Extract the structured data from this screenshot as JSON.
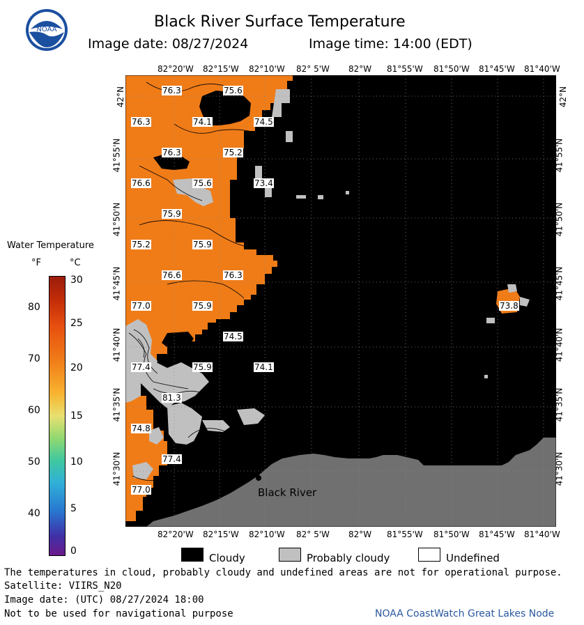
{
  "header": {
    "title": "Black River Surface Temperature",
    "image_date": "Image date: 08/27/2024",
    "image_time": "Image time: 14:00 (EDT)",
    "logo_text": "NOAA"
  },
  "map": {
    "lon_labels_top": [
      "82°20'W",
      "82°15'W",
      "82°10'W",
      "82° 5'W",
      "82°W",
      "81°55'W",
      "81°50'W",
      "81°45'W",
      "81°40'W"
    ],
    "lon_labels_bottom": [
      "82°20'W",
      "82°15'W",
      "82°10'W",
      "82° 5'W",
      "82°W",
      "81°55'W",
      "81°50'W",
      "81°45'W",
      "81°40'W"
    ],
    "lat_labels": [
      "42°N",
      "41°55'N",
      "41°50'N",
      "41°45'N",
      "41°40'N",
      "41°35'N",
      "41°30'N"
    ],
    "place_label": "Black River",
    "temps": [
      {
        "t": "76.3"
      },
      {
        "t": "75.6"
      },
      {
        "t": "76.3"
      },
      {
        "t": "74.1"
      },
      {
        "t": "74.5"
      },
      {
        "t": "76.3"
      },
      {
        "t": "75.2"
      },
      {
        "t": "76.6"
      },
      {
        "t": "75.6"
      },
      {
        "t": "73.4"
      },
      {
        "t": "75.9"
      },
      {
        "t": "75.2"
      },
      {
        "t": "75.9"
      },
      {
        "t": "76.6"
      },
      {
        "t": "76.3"
      },
      {
        "t": "77.0"
      },
      {
        "t": "75.9"
      },
      {
        "t": "73.8"
      },
      {
        "t": "74.5"
      },
      {
        "t": "77.4"
      },
      {
        "t": "75.9"
      },
      {
        "t": "74.1"
      },
      {
        "t": "81.3"
      },
      {
        "t": "74.8"
      },
      {
        "t": "77.4"
      },
      {
        "t": "77.0"
      }
    ]
  },
  "colorbar": {
    "title": "Water Temperature",
    "unit_f": "°F",
    "unit_c": "°C",
    "f_ticks": [
      "80",
      "70",
      "60",
      "50",
      "40"
    ],
    "c_ticks": [
      "30",
      "25",
      "20",
      "15",
      "10",
      "5",
      "0"
    ]
  },
  "legend": {
    "cloudy": "Cloudy",
    "probably_cloudy": "Probably cloudy",
    "undefined": "Undefined",
    "colors": {
      "cloudy": "#000000",
      "probably_cloudy": "#c0c0c0",
      "undefined": "#ffffff",
      "water": "#f07c18",
      "land": "#707070"
    }
  },
  "footer": {
    "note": "The temperatures in cloud, probably cloudy and undefined areas are not for operational purpose.",
    "satellite": "Satellite: VIIRS_N20",
    "utc_date": "Image date: (UTC) 08/27/2024  18:00",
    "nav_warning": "Not to be used for navigational purpose",
    "credit": "NOAA CoastWatch Great Lakes Node"
  }
}
